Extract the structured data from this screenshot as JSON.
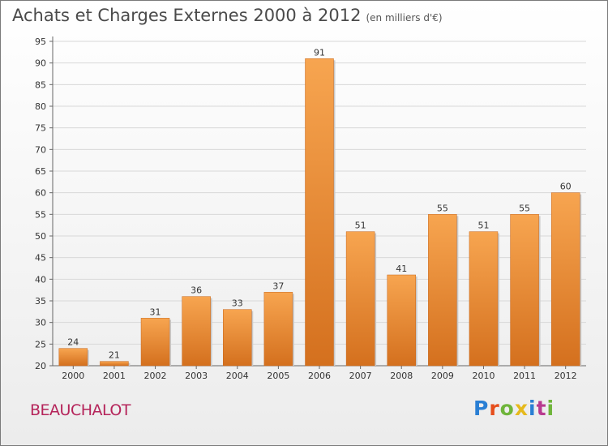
{
  "title": "Achats et Charges Externes 2000 à 2012",
  "unit": "(en milliers d'€)",
  "commune": "BEAUCHALOT",
  "logo": {
    "letters": [
      "P",
      "r",
      "o",
      "x",
      "i",
      "t",
      "i"
    ],
    "colors": [
      "#2a7fd4",
      "#e64e1c",
      "#6fb53b",
      "#e6b91c",
      "#2a7fd4",
      "#b83a8f",
      "#6fb53b"
    ]
  },
  "chart_data": {
    "type": "bar",
    "categories": [
      "2000",
      "2001",
      "2002",
      "2003",
      "2004",
      "2005",
      "2006",
      "2007",
      "2008",
      "2009",
      "2010",
      "2011",
      "2012"
    ],
    "values": [
      24,
      21,
      31,
      36,
      33,
      37,
      91,
      51,
      41,
      55,
      51,
      55,
      60
    ],
    "title": "Achats et Charges Externes 2000 à 2012",
    "xlabel": "",
    "ylabel": "",
    "ylim": [
      20,
      95
    ],
    "yticks": [
      20,
      25,
      30,
      35,
      40,
      45,
      50,
      55,
      60,
      65,
      70,
      75,
      80,
      85,
      90,
      95
    ],
    "grid": true,
    "legend": "none",
    "bar_color_top": "#f7a550",
    "bar_color_bottom": "#d4701e"
  }
}
